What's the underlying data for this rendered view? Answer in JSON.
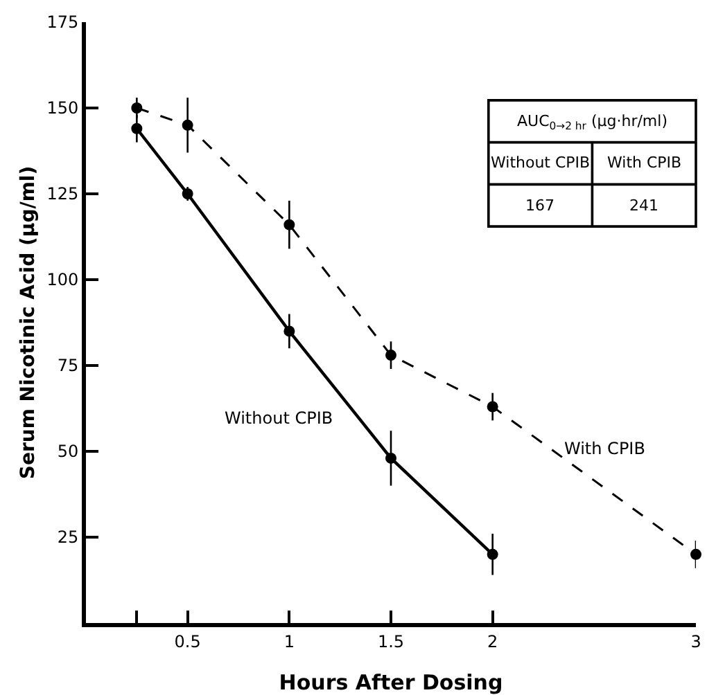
{
  "chart_data": {
    "type": "line",
    "xlabel": "Hours After Dosing",
    "ylabel": "Serum Nicotinic Acid (µg/ml)",
    "xlim": [
      0,
      3
    ],
    "xticks": [
      {
        "value": 0.25,
        "label": null
      },
      0.5,
      1,
      1.5,
      2,
      3
    ],
    "ylim": [
      0,
      175
    ],
    "yticks": [
      25,
      50,
      75,
      100,
      125,
      150,
      175
    ],
    "grid": false,
    "legend": false,
    "marker": "circle",
    "series": [
      {
        "name": "Without CPIB",
        "color": "#000000",
        "line_style": "solid",
        "x": [
          0.25,
          0.5,
          1,
          1.5,
          2
        ],
        "values": [
          144,
          125,
          85,
          48,
          20
        ],
        "errors": [
          4,
          2,
          5,
          8,
          6
        ]
      },
      {
        "name": "With CPIB",
        "color": "#000000",
        "line_style": "dashed",
        "x": [
          0.25,
          0.5,
          1,
          1.5,
          2,
          3
        ],
        "values": [
          150,
          145,
          116,
          78,
          63,
          20
        ],
        "errors": [
          3,
          8,
          7,
          4,
          4,
          4
        ]
      }
    ],
    "annotations": [
      "AUC$_{0→2 hr}$ (µg·hr/ml)",
      "Without CPIB",
      "With CPIB",
      "167",
      "241"
    ]
  }
}
